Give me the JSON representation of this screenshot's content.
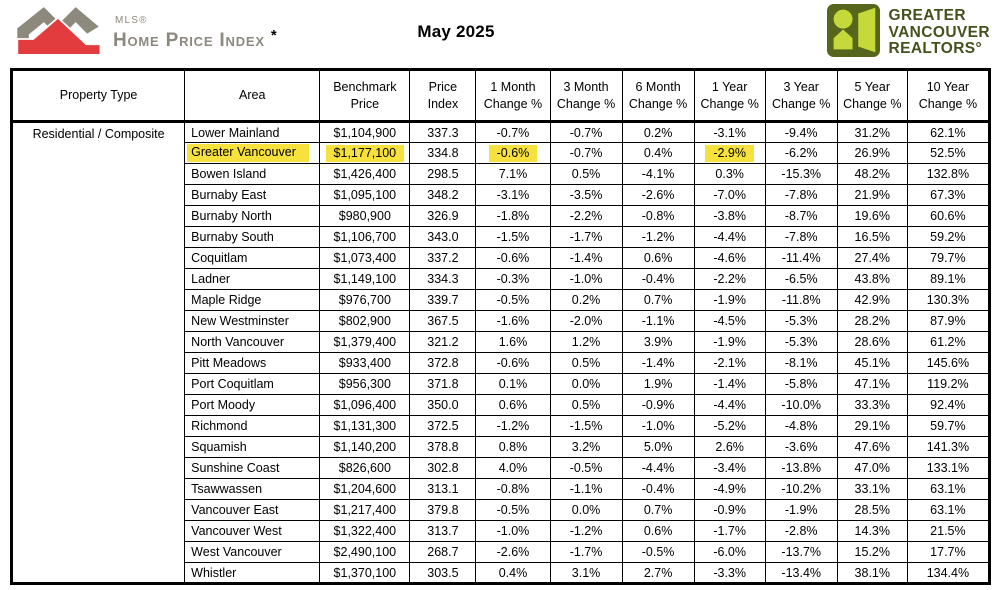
{
  "header": {
    "mls_logo": {
      "line1": "MLS®",
      "line2": "Home Price Index",
      "asterisk": "*"
    },
    "title": "May 2025",
    "gvr_logo": {
      "lines": [
        "GREATER",
        "VANCOUVER",
        "REALTORS°"
      ]
    }
  },
  "colors": {
    "highlight": "#f7e13c",
    "mls_gray": "#8d897c",
    "mls_red": "#e23c3f",
    "gvr_dark": "#56661b",
    "gvr_light": "#c5d93b",
    "gvr_text": "#44511d"
  },
  "table": {
    "property_type": "Residential / Composite",
    "columns": [
      {
        "id": "ptype",
        "lines": [
          "Property Type"
        ]
      },
      {
        "id": "area",
        "lines": [
          "Area"
        ]
      },
      {
        "id": "benchmark",
        "lines": [
          "Benchmark",
          "Price"
        ]
      },
      {
        "id": "index",
        "lines": [
          "Price",
          "Index"
        ]
      },
      {
        "id": "m1",
        "lines": [
          "1 Month",
          "Change %"
        ]
      },
      {
        "id": "m3",
        "lines": [
          "3 Month",
          "Change %"
        ]
      },
      {
        "id": "m6",
        "lines": [
          "6 Month",
          "Change %"
        ]
      },
      {
        "id": "y1",
        "lines": [
          "1 Year",
          "Change %"
        ]
      },
      {
        "id": "y3",
        "lines": [
          "3 Year",
          "Change %"
        ]
      },
      {
        "id": "y5",
        "lines": [
          "5 Year",
          "Change %"
        ]
      },
      {
        "id": "y10",
        "lines": [
          "10 Year",
          "Change %"
        ]
      }
    ],
    "rows": [
      {
        "area": "Lower Mainland",
        "benchmark": "$1,104,900",
        "index": "337.3",
        "m1": "-0.7%",
        "m3": "-0.7%",
        "m6": "0.2%",
        "y1": "-3.1%",
        "y3": "-9.4%",
        "y5": "31.2%",
        "y10": "62.1%"
      },
      {
        "area": "Greater Vancouver",
        "benchmark": "$1,177,100",
        "index": "334.8",
        "m1": "-0.6%",
        "m3": "-0.7%",
        "m6": "0.4%",
        "y1": "-2.9%",
        "y3": "-6.2%",
        "y5": "26.9%",
        "y10": "52.5%",
        "highlight": [
          "area",
          "benchmark",
          "m1",
          "y1"
        ]
      },
      {
        "area": "Bowen Island",
        "benchmark": "$1,426,400",
        "index": "298.5",
        "m1": "7.1%",
        "m3": "0.5%",
        "m6": "-4.1%",
        "y1": "0.3%",
        "y3": "-15.3%",
        "y5": "48.2%",
        "y10": "132.8%"
      },
      {
        "area": "Burnaby East",
        "benchmark": "$1,095,100",
        "index": "348.2",
        "m1": "-3.1%",
        "m3": "-3.5%",
        "m6": "-2.6%",
        "y1": "-7.0%",
        "y3": "-7.8%",
        "y5": "21.9%",
        "y10": "67.3%"
      },
      {
        "area": "Burnaby North",
        "benchmark": "$980,900",
        "index": "326.9",
        "m1": "-1.8%",
        "m3": "-2.2%",
        "m6": "-0.8%",
        "y1": "-3.8%",
        "y3": "-8.7%",
        "y5": "19.6%",
        "y10": "60.6%"
      },
      {
        "area": "Burnaby South",
        "benchmark": "$1,106,700",
        "index": "343.0",
        "m1": "-1.5%",
        "m3": "-1.7%",
        "m6": "-1.2%",
        "y1": "-4.4%",
        "y3": "-7.8%",
        "y5": "16.5%",
        "y10": "59.2%"
      },
      {
        "area": "Coquitlam",
        "benchmark": "$1,073,400",
        "index": "337.2",
        "m1": "-0.6%",
        "m3": "-1.4%",
        "m6": "0.6%",
        "y1": "-4.6%",
        "y3": "-11.4%",
        "y5": "27.4%",
        "y10": "79.7%"
      },
      {
        "area": "Ladner",
        "benchmark": "$1,149,100",
        "index": "334.3",
        "m1": "-0.3%",
        "m3": "-1.0%",
        "m6": "-0.4%",
        "y1": "-2.2%",
        "y3": "-6.5%",
        "y5": "43.8%",
        "y10": "89.1%"
      },
      {
        "area": "Maple Ridge",
        "benchmark": "$976,700",
        "index": "339.7",
        "m1": "-0.5%",
        "m3": "0.2%",
        "m6": "0.7%",
        "y1": "-1.9%",
        "y3": "-11.8%",
        "y5": "42.9%",
        "y10": "130.3%"
      },
      {
        "area": "New Westminster",
        "benchmark": "$802,900",
        "index": "367.5",
        "m1": "-1.6%",
        "m3": "-2.0%",
        "m6": "-1.1%",
        "y1": "-4.5%",
        "y3": "-5.3%",
        "y5": "28.2%",
        "y10": "87.9%"
      },
      {
        "area": "North Vancouver",
        "benchmark": "$1,379,400",
        "index": "321.2",
        "m1": "1.6%",
        "m3": "1.2%",
        "m6": "3.9%",
        "y1": "-1.9%",
        "y3": "-5.3%",
        "y5": "28.6%",
        "y10": "61.2%"
      },
      {
        "area": "Pitt Meadows",
        "benchmark": "$933,400",
        "index": "372.8",
        "m1": "-0.6%",
        "m3": "0.5%",
        "m6": "-1.4%",
        "y1": "-2.1%",
        "y3": "-8.1%",
        "y5": "45.1%",
        "y10": "145.6%"
      },
      {
        "area": "Port Coquitlam",
        "benchmark": "$956,300",
        "index": "371.8",
        "m1": "0.1%",
        "m3": "0.0%",
        "m6": "1.9%",
        "y1": "-1.4%",
        "y3": "-5.8%",
        "y5": "47.1%",
        "y10": "119.2%"
      },
      {
        "area": "Port Moody",
        "benchmark": "$1,096,400",
        "index": "350.0",
        "m1": "0.6%",
        "m3": "0.5%",
        "m6": "-0.9%",
        "y1": "-4.4%",
        "y3": "-10.0%",
        "y5": "33.3%",
        "y10": "92.4%"
      },
      {
        "area": "Richmond",
        "benchmark": "$1,131,300",
        "index": "372.5",
        "m1": "-1.2%",
        "m3": "-1.5%",
        "m6": "-1.0%",
        "y1": "-5.2%",
        "y3": "-4.8%",
        "y5": "29.1%",
        "y10": "59.7%"
      },
      {
        "area": "Squamish",
        "benchmark": "$1,140,200",
        "index": "378.8",
        "m1": "0.8%",
        "m3": "3.2%",
        "m6": "5.0%",
        "y1": "2.6%",
        "y3": "-3.6%",
        "y5": "47.6%",
        "y10": "141.3%"
      },
      {
        "area": "Sunshine Coast",
        "benchmark": "$826,600",
        "index": "302.8",
        "m1": "4.0%",
        "m3": "-0.5%",
        "m6": "-4.4%",
        "y1": "-3.4%",
        "y3": "-13.8%",
        "y5": "47.0%",
        "y10": "133.1%"
      },
      {
        "area": "Tsawwassen",
        "benchmark": "$1,204,600",
        "index": "313.1",
        "m1": "-0.8%",
        "m3": "-1.1%",
        "m6": "-0.4%",
        "y1": "-4.9%",
        "y3": "-10.2%",
        "y5": "33.1%",
        "y10": "63.1%"
      },
      {
        "area": "Vancouver East",
        "benchmark": "$1,217,400",
        "index": "379.8",
        "m1": "-0.5%",
        "m3": "0.0%",
        "m6": "0.7%",
        "y1": "-0.9%",
        "y3": "-1.9%",
        "y5": "28.5%",
        "y10": "63.1%"
      },
      {
        "area": "Vancouver West",
        "benchmark": "$1,322,400",
        "index": "313.7",
        "m1": "-1.0%",
        "m3": "-1.2%",
        "m6": "0.6%",
        "y1": "-1.7%",
        "y3": "-2.8%",
        "y5": "14.3%",
        "y10": "21.5%"
      },
      {
        "area": "West Vancouver",
        "benchmark": "$2,490,100",
        "index": "268.7",
        "m1": "-2.6%",
        "m3": "-1.7%",
        "m6": "-0.5%",
        "y1": "-6.0%",
        "y3": "-13.7%",
        "y5": "15.2%",
        "y10": "17.7%"
      },
      {
        "area": "Whistler",
        "benchmark": "$1,370,100",
        "index": "303.5",
        "m1": "0.4%",
        "m3": "3.1%",
        "m6": "2.7%",
        "y1": "-3.3%",
        "y3": "-13.4%",
        "y5": "38.1%",
        "y10": "134.4%"
      }
    ]
  }
}
